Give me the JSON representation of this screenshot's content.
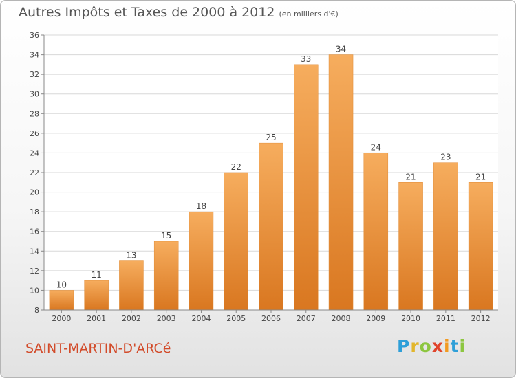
{
  "header": {
    "title": "Autres Impôts et Taxes de 2000 à 2012",
    "unit": "(en milliers d'€)"
  },
  "footer": {
    "commune": "SAINT-MARTIN-D'ARCé",
    "logo": {
      "letters": [
        "P",
        "r",
        "o",
        "x",
        "i",
        "t",
        "i"
      ],
      "colors": [
        "#2e9fd8",
        "#e2b62b",
        "#8cc63f",
        "#e0442b",
        "#f29a21",
        "#2e9fd8",
        "#8cc63f"
      ]
    }
  },
  "chart_data": {
    "type": "bar",
    "title": "Autres Impôts et Taxes de 2000 à 2012",
    "categories": [
      "2000",
      "2001",
      "2002",
      "2003",
      "2004",
      "2005",
      "2006",
      "2007",
      "2008",
      "2009",
      "2010",
      "2011",
      "2012"
    ],
    "values": [
      10,
      11,
      13,
      15,
      18,
      22,
      25,
      33,
      34,
      24,
      21,
      23,
      21
    ],
    "data_labels": [
      "10",
      "11",
      "13",
      "15",
      "18",
      "22",
      "25",
      "33",
      "34",
      "24",
      "21",
      "23",
      "21"
    ],
    "ylim": [
      8,
      36
    ],
    "yticks": [
      8,
      10,
      12,
      14,
      16,
      18,
      20,
      22,
      24,
      26,
      28,
      30,
      32,
      34,
      36
    ],
    "xlabel": "",
    "ylabel": "",
    "grid": true,
    "colors": {
      "bar": "#f0913a",
      "bar_light": "#f6ad5e",
      "bar_dark": "#d97720",
      "grid": "#d8d8d8",
      "text": "#444444"
    }
  }
}
